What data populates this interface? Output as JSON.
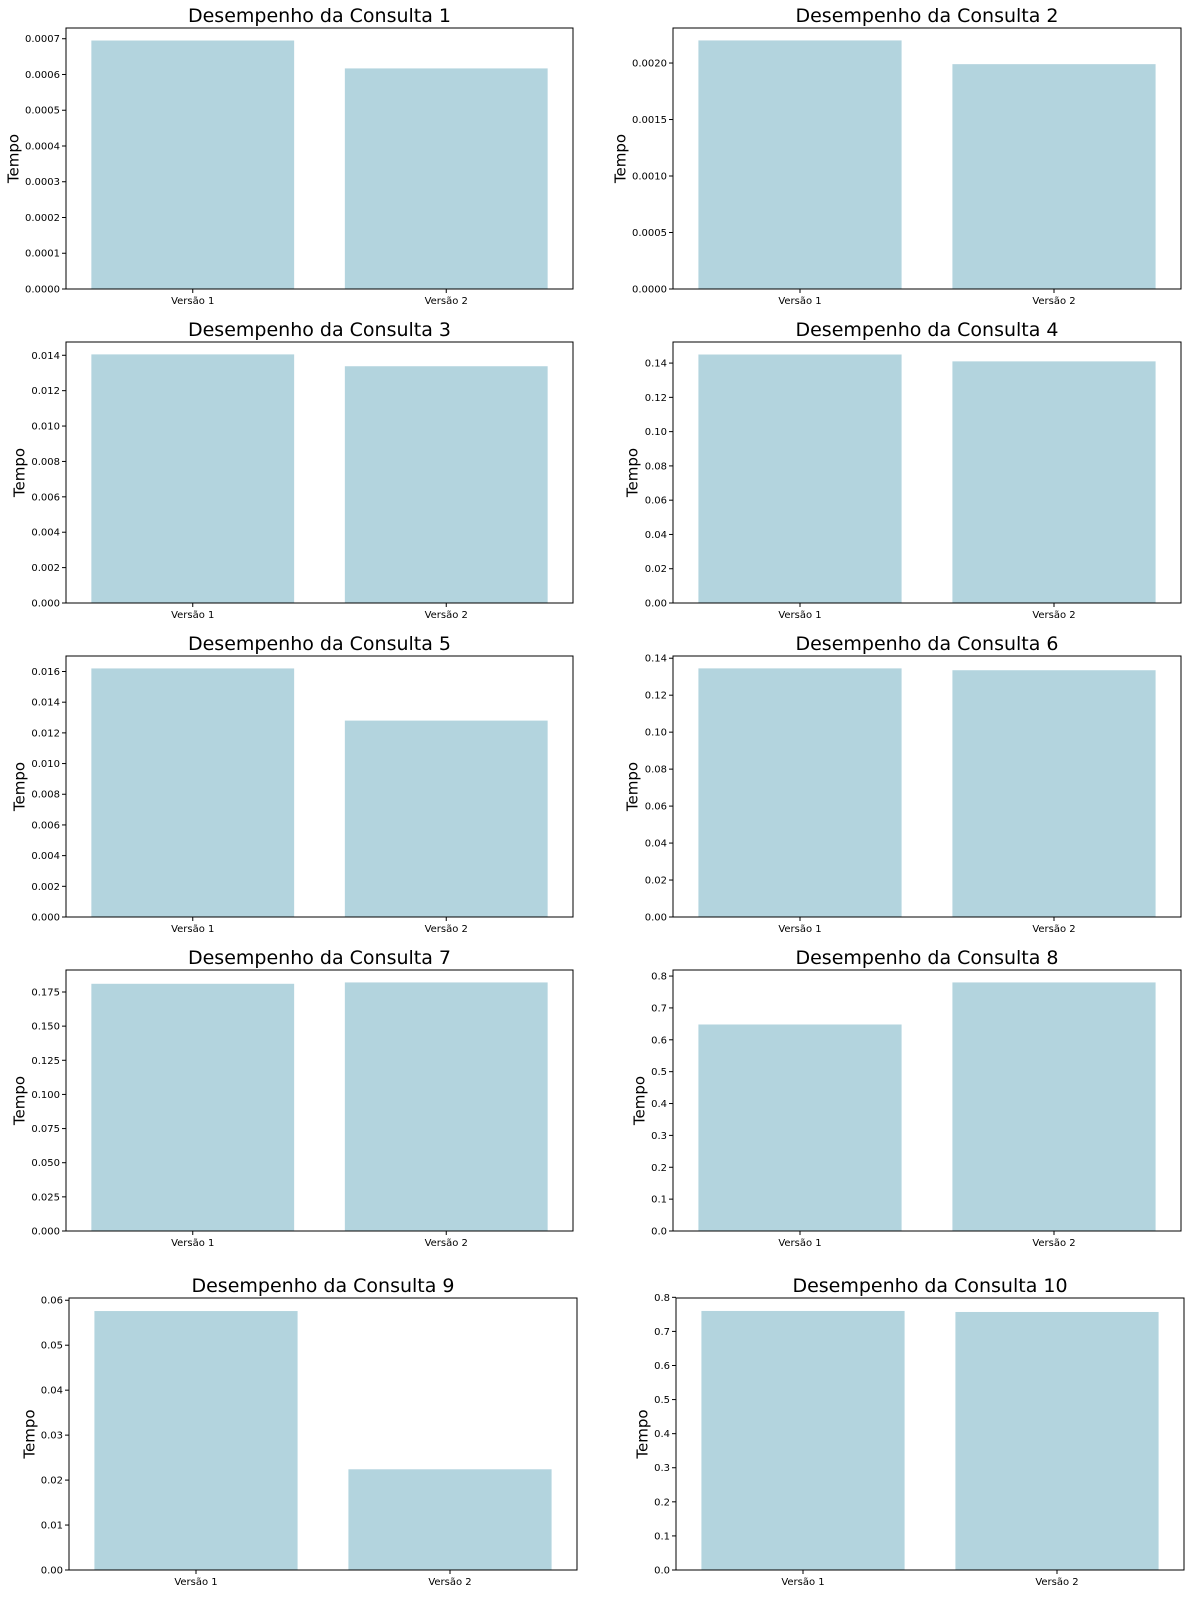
{
  "bar_color": "#b3d4de",
  "chart_data": [
    {
      "type": "bar",
      "title": "Desempenho da Consulta 1",
      "ylabel": "Tempo",
      "xlabel": "",
      "categories": [
        "Versão 1",
        "Versão 2"
      ],
      "values": [
        0.000695,
        0.000617
      ],
      "ylim": [
        0,
        0.00073
      ],
      "yticks": [
        0,
        0.0001,
        0.0002,
        0.0003,
        0.0004,
        0.0005,
        0.0006,
        0.0007
      ],
      "ytick_labels": [
        "0.0000",
        "0.0001",
        "0.0002",
        "0.0003",
        "0.0004",
        "0.0005",
        "0.0006",
        "0.0007"
      ],
      "grid": false
    },
    {
      "type": "bar",
      "title": "Desempenho da Consulta 2",
      "ylabel": "Tempo",
      "xlabel": "",
      "categories": [
        "Versão 1",
        "Versão 2"
      ],
      "values": [
        0.0022,
        0.00199
      ],
      "ylim": [
        0,
        0.00231
      ],
      "yticks": [
        0,
        0.0005,
        0.001,
        0.0015,
        0.002
      ],
      "ytick_labels": [
        "0.0000",
        "0.0005",
        "0.0010",
        "0.0015",
        "0.0020"
      ],
      "grid": false
    },
    {
      "type": "bar",
      "title": "Desempenho da Consulta 3",
      "ylabel": "Tempo",
      "xlabel": "",
      "categories": [
        "Versão 1",
        "Versão 2"
      ],
      "values": [
        0.01405,
        0.01338
      ],
      "ylim": [
        0,
        0.01475
      ],
      "yticks": [
        0,
        0.002,
        0.004,
        0.006,
        0.008,
        0.01,
        0.012,
        0.014
      ],
      "ytick_labels": [
        "0.000",
        "0.002",
        "0.004",
        "0.006",
        "0.008",
        "0.010",
        "0.012",
        "0.014"
      ],
      "grid": false
    },
    {
      "type": "bar",
      "title": "Desempenho da Consulta 4",
      "ylabel": "Tempo",
      "xlabel": "",
      "categories": [
        "Versão 1",
        "Versão 2"
      ],
      "values": [
        0.145,
        0.141
      ],
      "ylim": [
        0,
        0.1523
      ],
      "yticks": [
        0,
        0.02,
        0.04,
        0.06,
        0.08,
        0.1,
        0.12,
        0.14
      ],
      "ytick_labels": [
        "0.00",
        "0.02",
        "0.04",
        "0.06",
        "0.08",
        "0.10",
        "0.12",
        "0.14"
      ],
      "grid": false
    },
    {
      "type": "bar",
      "title": "Desempenho da Consulta 5",
      "ylabel": "Tempo",
      "xlabel": "",
      "categories": [
        "Versão 1",
        "Versão 2"
      ],
      "values": [
        0.0162,
        0.0128
      ],
      "ylim": [
        0,
        0.01701
      ],
      "yticks": [
        0,
        0.002,
        0.004,
        0.006,
        0.008,
        0.01,
        0.012,
        0.014,
        0.016
      ],
      "ytick_labels": [
        "0.000",
        "0.002",
        "0.004",
        "0.006",
        "0.008",
        "0.010",
        "0.012",
        "0.014",
        "0.016"
      ],
      "grid": false
    },
    {
      "type": "bar",
      "title": "Desempenho da Consulta 6",
      "ylabel": "Tempo",
      "xlabel": "",
      "categories": [
        "Versão 1",
        "Versão 2"
      ],
      "values": [
        0.1345,
        0.1335
      ],
      "ylim": [
        0,
        0.1412
      ],
      "yticks": [
        0,
        0.02,
        0.04,
        0.06,
        0.08,
        0.1,
        0.12,
        0.14
      ],
      "ytick_labels": [
        "0.00",
        "0.02",
        "0.04",
        "0.06",
        "0.08",
        "0.10",
        "0.12",
        "0.14"
      ],
      "grid": false
    },
    {
      "type": "bar",
      "title": "Desempenho da Consulta 7",
      "ylabel": "Tempo",
      "xlabel": "",
      "categories": [
        "Versão 1",
        "Versão 2"
      ],
      "values": [
        0.181,
        0.182
      ],
      "ylim": [
        0,
        0.1911
      ],
      "yticks": [
        0,
        0.025,
        0.05,
        0.075,
        0.1,
        0.125,
        0.15,
        0.175
      ],
      "ytick_labels": [
        "0.000",
        "0.025",
        "0.050",
        "0.075",
        "0.100",
        "0.125",
        "0.150",
        "0.175"
      ],
      "grid": false
    },
    {
      "type": "bar",
      "title": "Desempenho da Consulta 8",
      "ylabel": "Tempo",
      "xlabel": "",
      "categories": [
        "Versão 1",
        "Versão 2"
      ],
      "values": [
        0.648,
        0.78
      ],
      "ylim": [
        0,
        0.819
      ],
      "yticks": [
        0,
        0.1,
        0.2,
        0.3,
        0.4,
        0.5,
        0.6,
        0.7,
        0.8
      ],
      "ytick_labels": [
        "0.0",
        "0.1",
        "0.2",
        "0.3",
        "0.4",
        "0.5",
        "0.6",
        "0.7",
        "0.8"
      ],
      "grid": false
    },
    {
      "type": "bar",
      "title": "Desempenho da Consulta 9",
      "ylabel": "Tempo",
      "xlabel": "",
      "categories": [
        "Versão 1",
        "Versão 2"
      ],
      "values": [
        0.0576,
        0.0224
      ],
      "ylim": [
        0,
        0.0605
      ],
      "yticks": [
        0,
        0.01,
        0.02,
        0.03,
        0.04,
        0.05,
        0.06
      ],
      "ytick_labels": [
        "0.00",
        "0.01",
        "0.02",
        "0.03",
        "0.04",
        "0.05",
        "0.06"
      ],
      "grid": false
    },
    {
      "type": "bar",
      "title": "Desempenho da Consulta 10",
      "ylabel": "Tempo",
      "xlabel": "",
      "categories": [
        "Versão 1",
        "Versão 2"
      ],
      "values": [
        0.76,
        0.757
      ],
      "ylim": [
        0,
        0.798
      ],
      "yticks": [
        0,
        0.1,
        0.2,
        0.3,
        0.4,
        0.5,
        0.6,
        0.7,
        0.8
      ],
      "ytick_labels": [
        "0.0",
        "0.1",
        "0.2",
        "0.3",
        "0.4",
        "0.5",
        "0.6",
        "0.7",
        "0.8"
      ],
      "grid": false
    }
  ]
}
